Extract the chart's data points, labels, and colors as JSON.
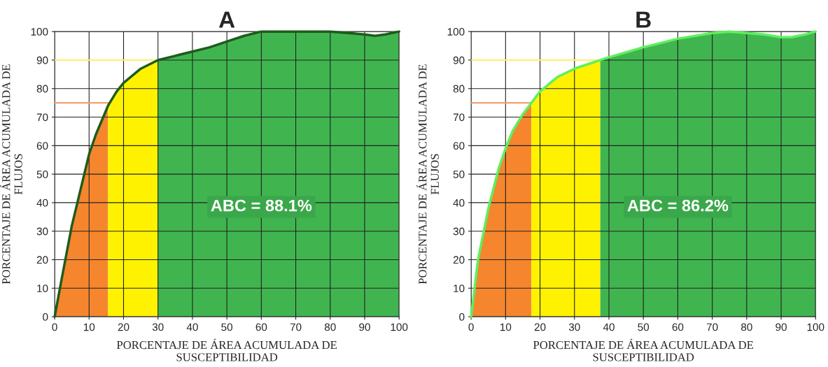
{
  "chart_data": [
    {
      "type": "area",
      "title": "A",
      "xlabel": "PORCENTAJE DE ÁREA ACUMULADA DE\nSUSCEPTIBILIDAD",
      "ylabel": "PORCENTAJE DE ÁREA ACUMULADA DE\nFLUJOS",
      "xlim": [
        0,
        100
      ],
      "ylim": [
        0,
        100
      ],
      "xticks": [
        0,
        10,
        20,
        30,
        40,
        50,
        60,
        70,
        80,
        90,
        100
      ],
      "yticks": [
        0,
        10,
        20,
        30,
        40,
        50,
        60,
        70,
        80,
        90,
        100
      ],
      "grid": true,
      "series": [
        {
          "color": "#f5862e",
          "x": [
            0,
            2,
            5,
            8,
            10,
            12,
            15.5
          ],
          "values": [
            0,
            13,
            32,
            47,
            57,
            64,
            74
          ]
        },
        {
          "color": "#fff200",
          "x": [
            15.5,
            18,
            20,
            25,
            30
          ],
          "values": [
            74,
            79,
            82,
            87,
            90
          ]
        },
        {
          "color": "#40b54f",
          "x": [
            30,
            35,
            40,
            45,
            50,
            55,
            60,
            70,
            80,
            90,
            93,
            96,
            100
          ],
          "values": [
            90,
            91.5,
            93,
            94.5,
            96.5,
            98.5,
            100,
            100,
            100,
            99,
            98.5,
            99,
            100
          ]
        },
        {
          "type": "line",
          "color": "#1d5c1d",
          "x": [
            0,
            2,
            5,
            8,
            10,
            12,
            15.5,
            18,
            20,
            25,
            30,
            35,
            40,
            45,
            50,
            55,
            60,
            70,
            80,
            90,
            93,
            96,
            100
          ],
          "values": [
            0,
            13,
            32,
            47,
            57,
            64,
            74,
            79,
            82,
            87,
            90,
            91.5,
            93,
            94.5,
            96.5,
            98.5,
            100,
            100,
            100,
            99,
            98.5,
            99,
            100
          ]
        }
      ],
      "ref_lines": [
        {
          "axis": "y",
          "value": 75,
          "color": "#f5a070"
        },
        {
          "axis": "y",
          "value": 90,
          "color": "#fff06a"
        }
      ],
      "annotations": [
        "ABC = 88.1%"
      ]
    },
    {
      "type": "area",
      "title": "B",
      "xlabel": "PORCENTAJE DE ÁREA ACUMULADA DE\nSUSCEPTIBILIDAD",
      "ylabel": "PORCENTAJE DE ÁREA ACUMULADA DE\nFLUJOS",
      "xlim": [
        0,
        100
      ],
      "ylim": [
        0,
        100
      ],
      "xticks": [
        0,
        10,
        20,
        30,
        40,
        50,
        60,
        70,
        80,
        90,
        100
      ],
      "yticks": [
        0,
        10,
        20,
        30,
        40,
        50,
        60,
        70,
        80,
        90,
        100
      ],
      "grid": true,
      "series": [
        {
          "color": "#f5862e",
          "x": [
            0,
            2,
            5,
            8,
            10,
            12,
            15,
            17.5
          ],
          "values": [
            0,
            20,
            38,
            52,
            59,
            65,
            71,
            75
          ]
        },
        {
          "color": "#fff200",
          "x": [
            17.5,
            20,
            25,
            30,
            35,
            37.5
          ],
          "values": [
            75,
            79,
            84,
            87,
            89,
            90
          ]
        },
        {
          "color": "#40b54f",
          "x": [
            37.5,
            40,
            50,
            60,
            70,
            75,
            80,
            85,
            90,
            93,
            97,
            100
          ],
          "values": [
            90,
            91,
            94.5,
            97.5,
            99.5,
            100,
            99.5,
            99,
            98,
            98,
            99,
            100
          ]
        },
        {
          "type": "line",
          "color": "#5ef05e",
          "x": [
            0,
            2,
            5,
            8,
            10,
            12,
            15,
            17.5,
            20,
            25,
            30,
            35,
            37.5,
            40,
            50,
            60,
            70,
            75,
            80,
            85,
            90,
            93,
            97,
            100
          ],
          "values": [
            0,
            20,
            38,
            52,
            59,
            65,
            71,
            75,
            79,
            84,
            87,
            89,
            90,
            91,
            94.5,
            97.5,
            99.5,
            100,
            99.5,
            99,
            98,
            98,
            99,
            100
          ]
        }
      ],
      "ref_lines": [
        {
          "axis": "y",
          "value": 75,
          "color": "#f5a070"
        },
        {
          "axis": "y",
          "value": 90,
          "color": "#fff06a"
        }
      ],
      "annotations": [
        "ABC = 86.2%"
      ]
    }
  ]
}
